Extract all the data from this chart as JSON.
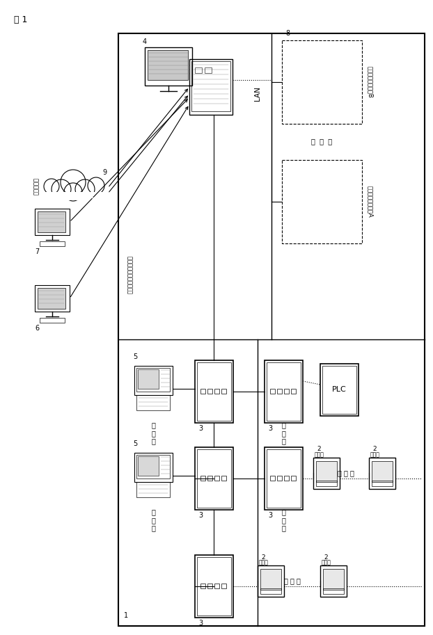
{
  "title": "図 1",
  "bg_color": "#ffffff",
  "fig_width": 6.22,
  "fig_height": 9.13,
  "dpi": 100,
  "label_1": "1",
  "label_2": "2",
  "label_3": "3",
  "label_4": "4",
  "label_5": "5",
  "label_6": "6",
  "label_7": "7",
  "label_8": "8",
  "label_9": "9",
  "label_lan": "LAN",
  "text_kikodata": "気象データ",
  "text_demand": "デマンドレスポンス情報",
  "text_vendor_a": "請ベンダシステムA",
  "text_vendor_b": "請ベンダシステムB",
  "text_plc": "PLC",
  "text_node": "ノード",
  "text_dots": "・・・"
}
